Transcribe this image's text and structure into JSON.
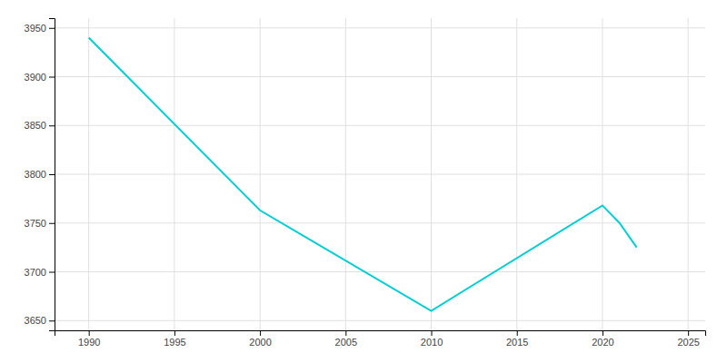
{
  "chart_data": {
    "type": "line",
    "x": [
      1990,
      2000,
      2010,
      2020,
      2021,
      2022
    ],
    "values": [
      3940,
      3763,
      3660,
      3768,
      3750,
      3725
    ],
    "color": "#00CED1",
    "xlim": [
      1988,
      2026
    ],
    "ylim": [
      3640,
      3960
    ],
    "xticks": [
      1990,
      1995,
      2000,
      2005,
      2010,
      2015,
      2020,
      2025
    ],
    "yticks": [
      3650,
      3700,
      3750,
      3800,
      3850,
      3900,
      3950
    ],
    "grid": true
  }
}
